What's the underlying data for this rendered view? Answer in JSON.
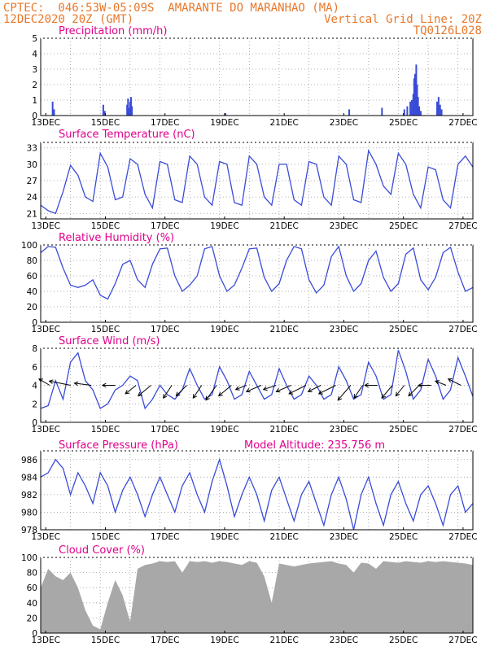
{
  "header": {
    "line1_left": "CPTEC:  046:53W-05:09S  AMARANTE DO MARANHAO (MA)",
    "line2_left": "12DEC2020 20Z (GMT)",
    "line2_right": "Vertical Grid Line: 20Z",
    "line3_right": "TQ0126L028"
  },
  "x_tick_labels": [
    "13DEC",
    "15DEC",
    "17DEC",
    "19DEC",
    "21DEC",
    "23DEC",
    "25DEC",
    "27DEC"
  ],
  "colors": {
    "series": "#3a4bd8",
    "title": "#e0008c",
    "header": "#e8782a",
    "cloud": "#a8a8a8"
  },
  "chart_data": [
    {
      "type": "bar",
      "title": "Precipitation (mm/h)",
      "ylim": [
        0,
        5
      ],
      "yticks": [
        "0",
        "1",
        "2",
        "3",
        "4",
        "5"
      ],
      "x_unit": "days after 12DEC2020 20Z",
      "xlim": [
        0,
        14.5
      ],
      "x": [
        0.4,
        0.45,
        2.1,
        2.15,
        2.9,
        2.93,
        2.96,
        3.0,
        3.03,
        3.06,
        6.2,
        10.35,
        11.45,
        12.2,
        12.3,
        12.4,
        12.45,
        12.5,
        12.53,
        12.56,
        12.6,
        12.63,
        12.66,
        12.7,
        12.75,
        13.3,
        13.35,
        13.4,
        13.45
      ],
      "values": [
        0.9,
        0.4,
        0.7,
        0.3,
        0.7,
        1.1,
        0.5,
        0.9,
        1.2,
        0.6,
        0.15,
        0.4,
        0.5,
        0.4,
        0.6,
        0.9,
        1.0,
        1.4,
        2.4,
        2.7,
        3.3,
        2.0,
        1.2,
        0.6,
        0.3,
        0.9,
        1.2,
        0.7,
        0.4
      ]
    },
    {
      "type": "line",
      "title": "Surface Temperature (nC)",
      "ylim": [
        20,
        34
      ],
      "yticks": [
        "21",
        "24",
        "27",
        "30",
        "33"
      ],
      "xlim": [
        0,
        14.5
      ],
      "x": [
        0,
        0.25,
        0.5,
        0.75,
        1.0,
        1.25,
        1.5,
        1.75,
        2.0,
        2.25,
        2.5,
        2.75,
        3.0,
        3.25,
        3.5,
        3.75,
        4.0,
        4.25,
        4.5,
        4.75,
        5.0,
        5.25,
        5.5,
        5.75,
        6.0,
        6.25,
        6.5,
        6.75,
        7.0,
        7.25,
        7.5,
        7.75,
        8.0,
        8.25,
        8.5,
        8.75,
        9.0,
        9.25,
        9.5,
        9.75,
        10.0,
        10.25,
        10.5,
        10.75,
        11.0,
        11.25,
        11.5,
        11.75,
        12.0,
        12.25,
        12.5,
        12.75,
        13.0,
        13.25,
        13.5,
        13.75,
        14.0,
        14.25,
        14.5
      ],
      "values": [
        22.5,
        21.5,
        21,
        25,
        29.8,
        28,
        24,
        23.2,
        32,
        29.5,
        23.5,
        24,
        31,
        30,
        24.5,
        22,
        30.5,
        30,
        23.5,
        23,
        31.5,
        30,
        24,
        22.5,
        30.5,
        30,
        23,
        22.5,
        31.5,
        30,
        24,
        22.5,
        30,
        30,
        23.5,
        22.5,
        30.5,
        30,
        24,
        22.5,
        31.5,
        30,
        23.5,
        23,
        32.5,
        30,
        26,
        24.5,
        32,
        30,
        24.5,
        22,
        29.5,
        29,
        23.5,
        22,
        30,
        31.5,
        29.5
      ]
    },
    {
      "type": "line",
      "title": "Relative Humidity (%)",
      "ylim": [
        0,
        100
      ],
      "yticks": [
        "0",
        "20",
        "40",
        "60",
        "80",
        "100"
      ],
      "xlim": [
        0,
        14.5
      ],
      "x": [
        0,
        0.25,
        0.5,
        0.75,
        1.0,
        1.25,
        1.5,
        1.75,
        2.0,
        2.25,
        2.5,
        2.75,
        3.0,
        3.25,
        3.5,
        3.75,
        4.0,
        4.25,
        4.5,
        4.75,
        5.0,
        5.25,
        5.5,
        5.75,
        6.0,
        6.25,
        6.5,
        6.75,
        7.0,
        7.25,
        7.5,
        7.75,
        8.0,
        8.25,
        8.5,
        8.75,
        9.0,
        9.25,
        9.5,
        9.75,
        10.0,
        10.25,
        10.5,
        10.75,
        11.0,
        11.25,
        11.5,
        11.75,
        12.0,
        12.25,
        12.5,
        12.75,
        13.0,
        13.25,
        13.5,
        13.75,
        14.0,
        14.25,
        14.5
      ],
      "values": [
        90,
        98,
        97,
        70,
        48,
        45,
        48,
        55,
        35,
        30,
        50,
        75,
        80,
        55,
        45,
        75,
        95,
        96,
        60,
        40,
        48,
        60,
        95,
        98,
        60,
        40,
        48,
        70,
        95,
        96,
        58,
        40,
        50,
        80,
        98,
        95,
        55,
        38,
        48,
        85,
        98,
        60,
        40,
        50,
        80,
        92,
        58,
        40,
        50,
        88,
        96,
        55,
        42,
        58,
        90,
        97,
        65,
        40,
        45
      ]
    },
    {
      "type": "line",
      "title": "Surface Wind (m/s)",
      "ylim": [
        0,
        8
      ],
      "yticks": [
        "0",
        "2",
        "4",
        "6",
        "8"
      ],
      "xlim": [
        0,
        14.5
      ],
      "x": [
        0,
        0.25,
        0.5,
        0.75,
        1.0,
        1.25,
        1.5,
        1.75,
        2.0,
        2.25,
        2.5,
        2.75,
        3.0,
        3.25,
        3.5,
        3.75,
        4.0,
        4.25,
        4.5,
        4.75,
        5.0,
        5.25,
        5.5,
        5.75,
        6.0,
        6.25,
        6.5,
        6.75,
        7.0,
        7.25,
        7.5,
        7.75,
        8.0,
        8.25,
        8.5,
        8.75,
        9.0,
        9.25,
        9.5,
        9.75,
        10.0,
        10.25,
        10.5,
        10.75,
        11.0,
        11.25,
        11.5,
        11.75,
        12.0,
        12.25,
        12.5,
        12.75,
        13.0,
        13.25,
        13.5,
        13.75,
        14.0,
        14.25,
        14.5
      ],
      "values": [
        1.5,
        1.8,
        4.5,
        2.5,
        6.5,
        7.5,
        4.5,
        3.5,
        1.5,
        2.0,
        3.5,
        4.0,
        5.0,
        4.5,
        1.5,
        2.5,
        4.0,
        3.0,
        2.5,
        3.5,
        5.8,
        4.0,
        2.5,
        3.0,
        6.0,
        4.5,
        2.5,
        3.0,
        5.5,
        4.0,
        2.5,
        3.0,
        5.8,
        4.0,
        2.5,
        3.0,
        5.0,
        4.0,
        2.5,
        3.0,
        6.0,
        4.5,
        2.5,
        3.0,
        6.5,
        5.0,
        2.5,
        3.0,
        7.8,
        5.5,
        2.5,
        3.5,
        6.8,
        5.0,
        2.5,
        3.5,
        7.0,
        5.0,
        2.8
      ],
      "arrows": [
        {
          "x": 0.3,
          "u": -0.5,
          "v": 0.3
        },
        {
          "x": 1.0,
          "u": -1.0,
          "v": 0.2
        },
        {
          "x": 1.7,
          "u": -0.8,
          "v": 0.1
        },
        {
          "x": 2.5,
          "u": -0.6,
          "v": 0.0
        },
        {
          "x": 3.2,
          "u": -0.5,
          "v": -0.4
        },
        {
          "x": 3.7,
          "u": -0.6,
          "v": -0.5
        },
        {
          "x": 4.4,
          "u": -0.4,
          "v": -0.6
        },
        {
          "x": 4.9,
          "u": -0.5,
          "v": -0.5
        },
        {
          "x": 5.4,
          "u": -0.4,
          "v": -0.6
        },
        {
          "x": 5.9,
          "u": -0.5,
          "v": -0.7
        },
        {
          "x": 6.4,
          "u": -0.6,
          "v": -0.5
        },
        {
          "x": 6.9,
          "u": -0.5,
          "v": -0.2
        },
        {
          "x": 7.4,
          "u": -0.7,
          "v": -0.3
        },
        {
          "x": 7.9,
          "u": -0.6,
          "v": -0.2
        },
        {
          "x": 8.4,
          "u": -0.7,
          "v": -0.3
        },
        {
          "x": 8.9,
          "u": -0.8,
          "v": -0.4
        },
        {
          "x": 9.4,
          "u": -0.6,
          "v": -0.3
        },
        {
          "x": 9.9,
          "u": -0.8,
          "v": -0.4
        },
        {
          "x": 10.4,
          "u": -0.6,
          "v": -0.7
        },
        {
          "x": 10.8,
          "u": -0.4,
          "v": -0.6
        },
        {
          "x": 11.3,
          "u": -0.6,
          "v": 0.0
        },
        {
          "x": 11.8,
          "u": -0.5,
          "v": -0.6
        },
        {
          "x": 12.2,
          "u": -0.4,
          "v": -0.5
        },
        {
          "x": 12.7,
          "u": -0.5,
          "v": -0.5
        },
        {
          "x": 13.1,
          "u": -0.6,
          "v": 0.0
        },
        {
          "x": 13.6,
          "u": -0.5,
          "v": 0.2
        },
        {
          "x": 14.1,
          "u": -0.6,
          "v": 0.3
        }
      ]
    },
    {
      "type": "line",
      "title": "Surface Pressure (hPa)",
      "annotation": "Model Altitude: 235.756 m",
      "ylim": [
        978,
        987
      ],
      "yticks": [
        "978",
        "980",
        "982",
        "984",
        "986"
      ],
      "xlim": [
        0,
        14.5
      ],
      "x": [
        0,
        0.25,
        0.5,
        0.75,
        1.0,
        1.25,
        1.5,
        1.75,
        2.0,
        2.25,
        2.5,
        2.75,
        3.0,
        3.25,
        3.5,
        3.75,
        4.0,
        4.25,
        4.5,
        4.75,
        5.0,
        5.25,
        5.5,
        5.75,
        6.0,
        6.25,
        6.5,
        6.75,
        7.0,
        7.25,
        7.5,
        7.75,
        8.0,
        8.25,
        8.5,
        8.75,
        9.0,
        9.25,
        9.5,
        9.75,
        10.0,
        10.25,
        10.5,
        10.75,
        11.0,
        11.25,
        11.5,
        11.75,
        12.0,
        12.25,
        12.5,
        12.75,
        13.0,
        13.25,
        13.5,
        13.75,
        14.0,
        14.25,
        14.5
      ],
      "values": [
        984,
        984.5,
        986,
        985,
        982,
        984.5,
        983,
        981,
        984.5,
        983,
        980,
        982.5,
        984,
        982,
        979.5,
        982,
        984,
        982,
        980,
        983,
        984.5,
        982,
        980,
        983.5,
        986,
        983,
        979.5,
        982,
        984,
        982,
        979,
        982.5,
        984,
        981.5,
        979,
        982,
        983.5,
        981,
        978.5,
        982,
        984,
        981.5,
        978,
        982,
        984,
        981,
        978.5,
        982,
        983.5,
        981,
        979,
        982,
        983,
        981,
        978.5,
        982,
        983,
        980,
        981
      ]
    },
    {
      "type": "area",
      "title": "Cloud Cover (%)",
      "ylim": [
        0,
        100
      ],
      "yticks": [
        "0",
        "20",
        "40",
        "60",
        "80",
        "100"
      ],
      "xlim": [
        0,
        14.5
      ],
      "x": [
        0,
        0.25,
        0.5,
        0.75,
        1.0,
        1.25,
        1.5,
        1.75,
        2.0,
        2.25,
        2.5,
        2.75,
        3.0,
        3.25,
        3.5,
        3.75,
        4.0,
        4.25,
        4.5,
        4.75,
        5.0,
        5.25,
        5.5,
        5.75,
        6.0,
        6.25,
        6.5,
        6.75,
        7.0,
        7.25,
        7.5,
        7.75,
        8.0,
        8.25,
        8.5,
        8.75,
        9.0,
        9.25,
        9.5,
        9.75,
        10.0,
        10.25,
        10.5,
        10.75,
        11.0,
        11.25,
        11.5,
        11.75,
        12.0,
        12.25,
        12.5,
        12.75,
        13.0,
        13.25,
        13.5,
        13.75,
        14.0,
        14.25,
        14.5
      ],
      "values": [
        60,
        85,
        75,
        70,
        80,
        60,
        30,
        10,
        5,
        40,
        70,
        50,
        15,
        85,
        90,
        92,
        95,
        94,
        95,
        80,
        95,
        94,
        95,
        93,
        95,
        94,
        92,
        90,
        95,
        93,
        75,
        40,
        92,
        90,
        88,
        90,
        92,
        93,
        94,
        95,
        92,
        90,
        80,
        93,
        92,
        85,
        95,
        94,
        93,
        95,
        94,
        93,
        95,
        94,
        95,
        94,
        93,
        92,
        90
      ]
    }
  ]
}
